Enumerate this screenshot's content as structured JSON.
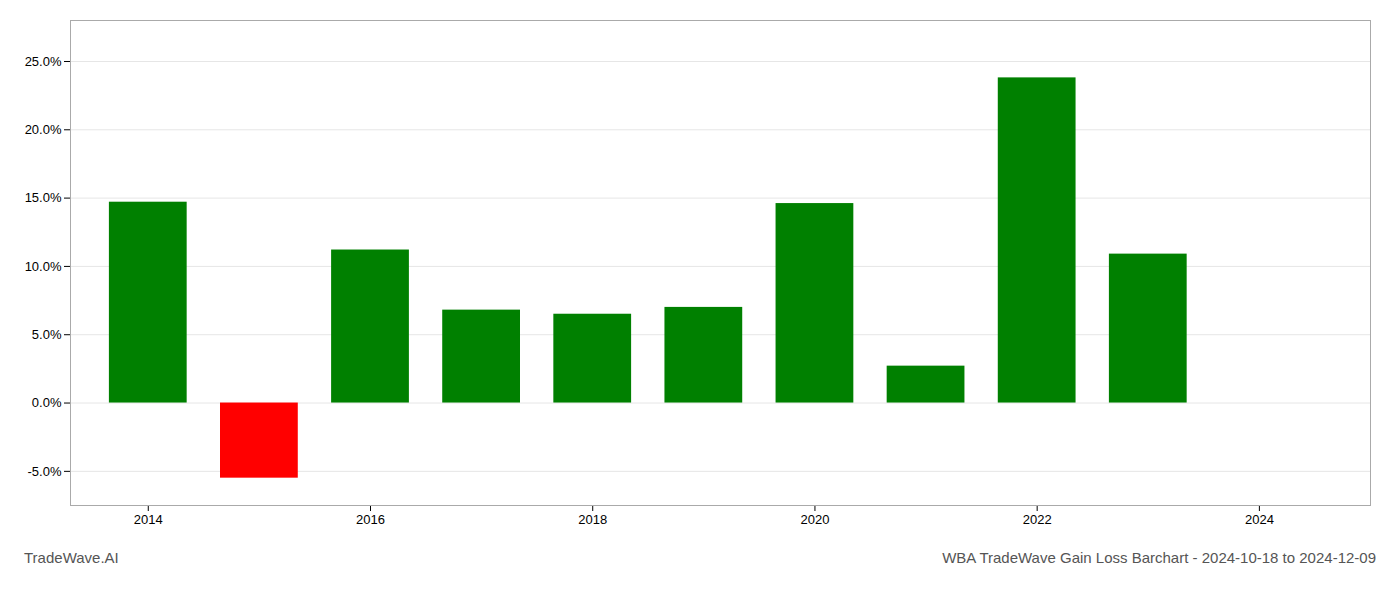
{
  "chart_data": {
    "type": "bar",
    "title": "WBA TradeWave Gain Loss Barchart - 2024-10-18 to 2024-12-09",
    "annotations": [
      "TradeWave.AI"
    ],
    "x": [
      2014,
      2015,
      2016,
      2017,
      2018,
      2019,
      2020,
      2021,
      2022,
      2023
    ],
    "values": [
      0.147,
      -0.055,
      0.112,
      0.068,
      0.065,
      0.07,
      0.146,
      0.027,
      0.238,
      0.109
    ],
    "colors": [
      "#008000",
      "#ff0000",
      "#008000",
      "#008000",
      "#008000",
      "#008000",
      "#008000",
      "#008000",
      "#008000",
      "#008000"
    ],
    "xlim": [
      2013.3,
      2025.0
    ],
    "xticks": [
      2014,
      2016,
      2018,
      2020,
      2022,
      2024
    ],
    "ylim": [
      -0.075,
      0.28
    ],
    "yticks": [
      {
        "value": -0.05,
        "label": "-5.0%"
      },
      {
        "value": 0.0,
        "label": "0.0%"
      },
      {
        "value": 0.05,
        "label": "5.0%"
      },
      {
        "value": 0.1,
        "label": "10.0%"
      },
      {
        "value": 0.15,
        "label": "15.0%"
      },
      {
        "value": 0.2,
        "label": "20.0%"
      },
      {
        "value": 0.25,
        "label": "25.0%"
      }
    ],
    "grid": true
  }
}
